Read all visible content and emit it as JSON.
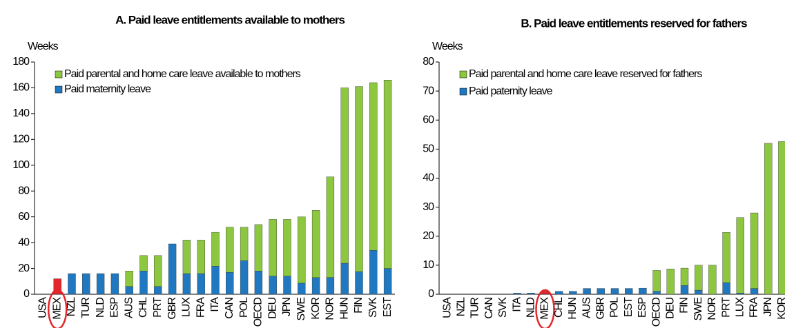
{
  "chart_data": [
    {
      "type": "bar",
      "stacked": true,
      "title": "A. Paid leave entitlements available to mothers",
      "ylabel": "Weeks",
      "categories": [
        "USA",
        "MEX",
        "NZL",
        "TUR",
        "NLD",
        "ESP",
        "AUS",
        "CHL",
        "PRT",
        "GBR",
        "LUX",
        "FRA",
        "ITA",
        "CAN",
        "POL",
        "OECD",
        "DEU",
        "JPN",
        "SWE",
        "KOR",
        "NOR",
        "HUN",
        "FIN",
        "SVK",
        "EST"
      ],
      "series": [
        {
          "name": "Paid maternity leave",
          "color": "#1f78c0",
          "values": [
            0,
            12,
            16,
            16,
            16,
            16,
            6,
            18,
            6,
            39,
            16,
            16,
            21.7,
            17,
            26,
            18,
            14,
            14,
            8.6,
            12.9,
            13,
            24,
            17.5,
            34,
            20
          ]
        },
        {
          "name": "Paid parental and home care leave available to mothers",
          "color": "#8dc63f",
          "values": [
            0,
            0,
            0,
            0,
            0,
            0,
            12,
            12,
            24,
            0,
            26,
            26,
            26.3,
            35,
            26,
            36,
            44,
            44,
            51.4,
            52.1,
            78,
            136,
            143.5,
            130,
            146
          ]
        }
      ],
      "ylim": [
        0,
        180
      ],
      "yticks": [
        0,
        20,
        40,
        60,
        80,
        100,
        120,
        140,
        160,
        180
      ],
      "legend": "upper left",
      "highlight": {
        "category": "MEX",
        "color": "#e3262b"
      }
    },
    {
      "type": "bar",
      "stacked": true,
      "title": "B. Paid leave entitlements reserved for fathers",
      "ylabel": "Weeks",
      "categories": [
        "USA",
        "NZL",
        "TUR",
        "CAN",
        "SVK",
        "ITA",
        "NLD",
        "MEX",
        "CHL",
        "HUN",
        "AUS",
        "GBR",
        "POL",
        "EST",
        "ESP",
        "OECD",
        "DEU",
        "FIN",
        "SWE",
        "NOR",
        "PRT",
        "LUX",
        "FRA",
        "JPN",
        "KOR"
      ],
      "series": [
        {
          "name": "Paid paternity leave",
          "color": "#1f78c0",
          "values": [
            0,
            0,
            0,
            0,
            0,
            0.4,
            0.4,
            1,
            1,
            1,
            2,
            2,
            2,
            2,
            2.1,
            1,
            0,
            3,
            1.4,
            0,
            4,
            0.4,
            2,
            0,
            0
          ]
        },
        {
          "name": "Paid parental and home care leave reserved for fathers",
          "color": "#8dc63f",
          "values": [
            0,
            0,
            0,
            0,
            0,
            0,
            0,
            0,
            0,
            0,
            0,
            0,
            0,
            0,
            0,
            7.2,
            8.7,
            6,
            8.6,
            10,
            17.3,
            26,
            26,
            52,
            52.6
          ]
        }
      ],
      "ylim": [
        0,
        80
      ],
      "yticks": [
        0,
        10,
        20,
        30,
        40,
        50,
        60,
        70,
        80
      ],
      "legend": "upper left",
      "highlight": {
        "category": "MEX",
        "color": "#e3262b"
      }
    }
  ]
}
